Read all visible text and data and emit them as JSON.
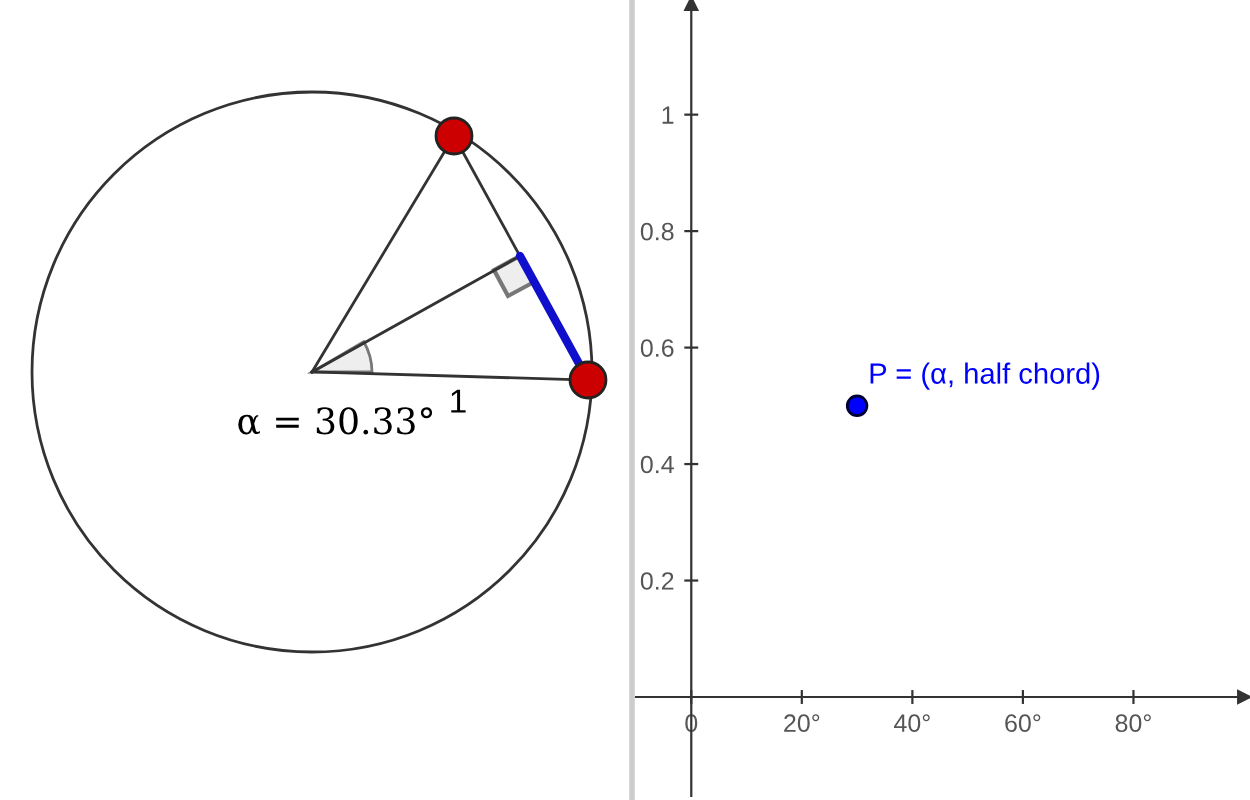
{
  "chart_data": [
    {
      "type": "other",
      "annotations": [
        "α = 30.33°",
        "1"
      ]
    },
    {
      "type": "scatter",
      "x": [
        30
      ],
      "values": [
        0.5
      ],
      "color": "#0000ff",
      "marker": "circle",
      "annotations": [
        {
          "text": "P = (α, half chord)",
          "x": 30,
          "y": 0.5
        }
      ],
      "xlim": [
        -10,
        100
      ],
      "ylim": [
        -0.17,
        1.19
      ],
      "xticks": [
        {
          "value": 0,
          "label": "0"
        },
        {
          "value": 20,
          "label": "20°"
        },
        {
          "value": 40,
          "label": "40°"
        },
        {
          "value": 60,
          "label": "60°"
        },
        {
          "value": 80,
          "label": "80°"
        }
      ],
      "yticks": [
        0.2,
        0.4,
        0.6,
        0.8,
        1
      ],
      "legend": false
    }
  ]
}
